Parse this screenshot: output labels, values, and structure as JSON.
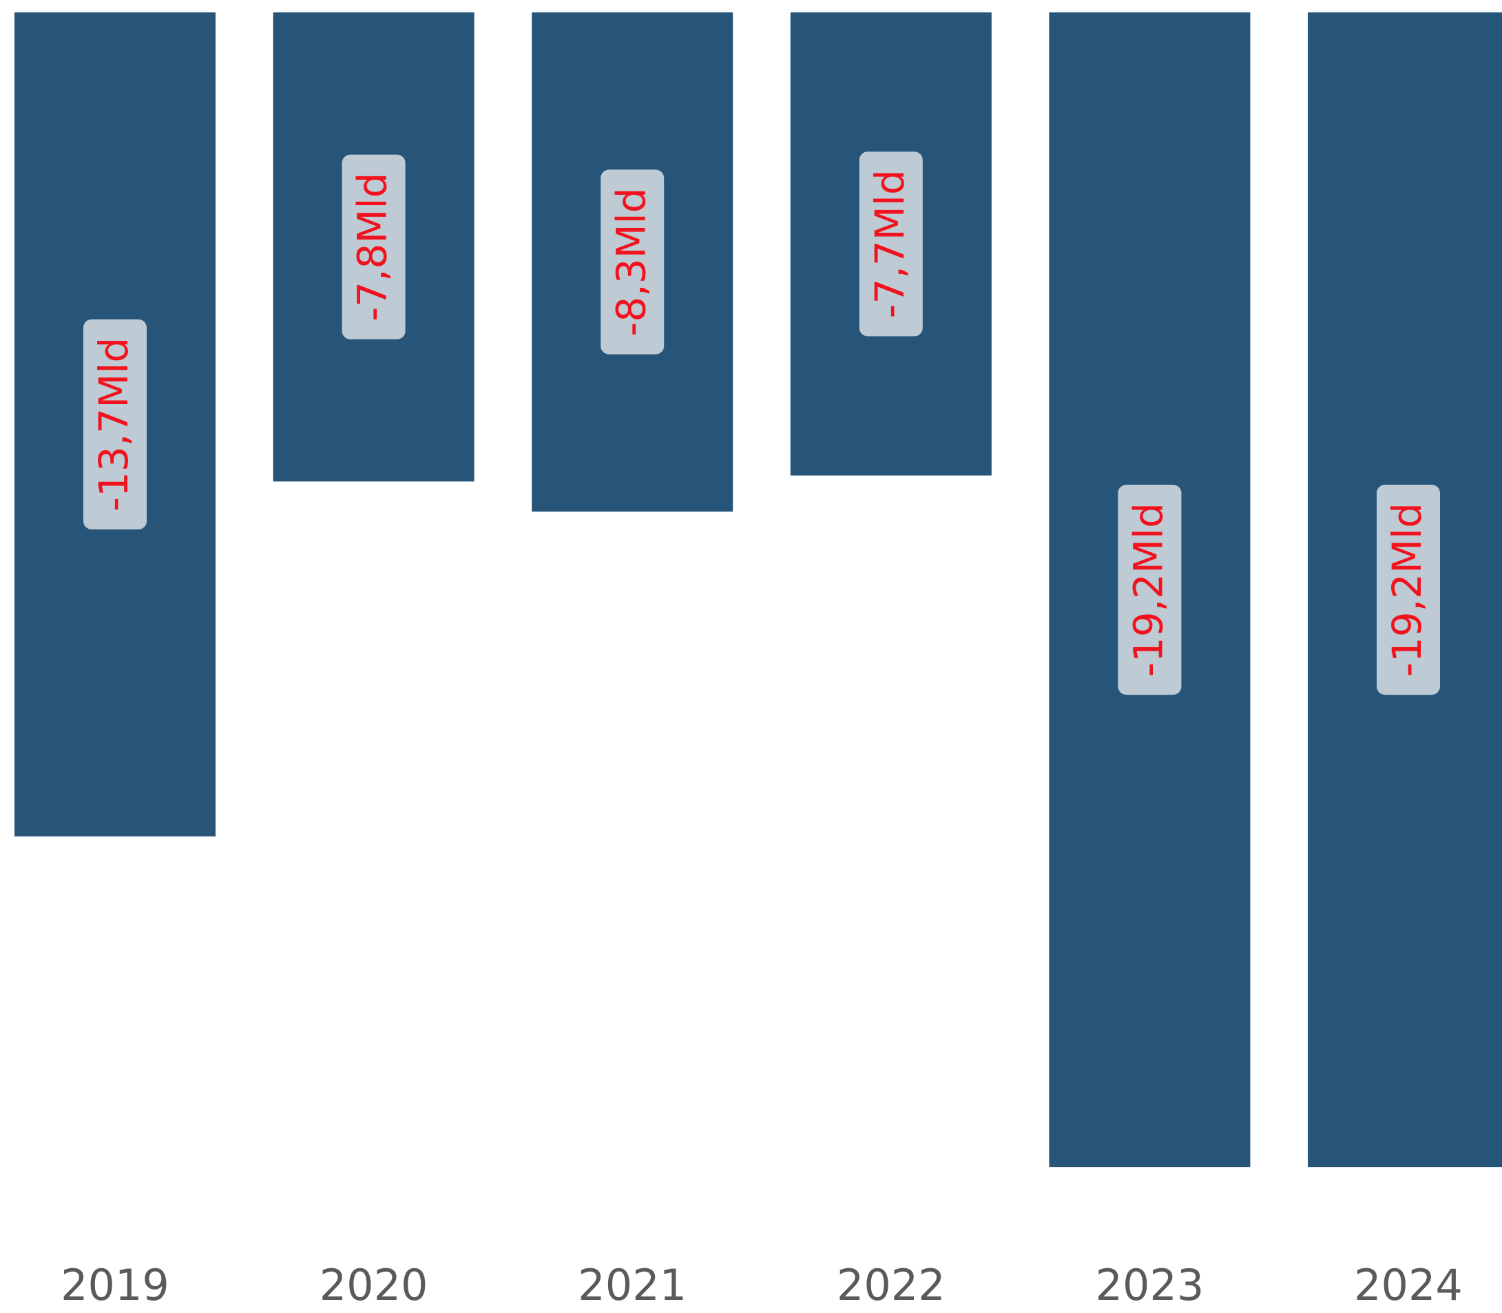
{
  "chart_data": {
    "type": "bar",
    "categories": [
      "2019",
      "2020",
      "2021",
      "2022",
      "2023",
      "2024"
    ],
    "values": [
      -13.7,
      -7.8,
      -8.3,
      -7.7,
      -19.2,
      -19.2
    ],
    "value_labels": [
      "-13,7Mld",
      "-7,8Mld",
      "-8,3Mld",
      "-7,7Mld",
      "-19,2Mld",
      "-19,2Mld"
    ],
    "color": "#27557a",
    "ylim": [
      -20,
      0
    ]
  }
}
